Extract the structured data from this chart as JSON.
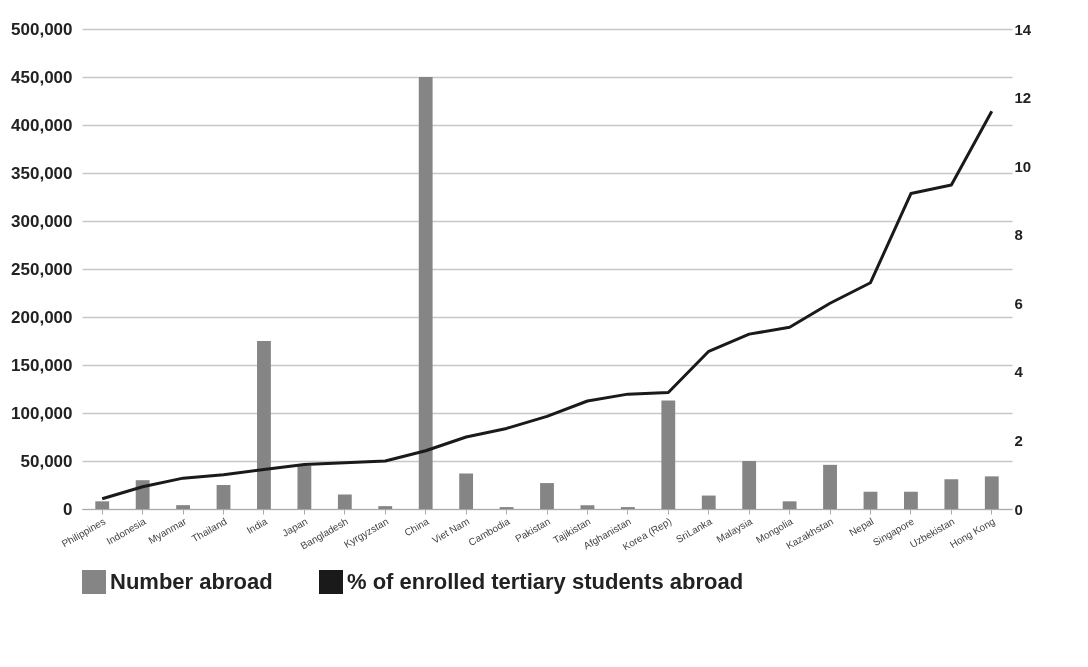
{
  "chart_data": {
    "type": "bar",
    "categories": [
      "Philippines",
      "Indonesia",
      "Myanmar",
      "Thailand",
      "India",
      "Japan",
      "Bangladesh",
      "Kyrgyzstan",
      "China",
      "Viet Nam",
      "Cambodia",
      "Pakistan",
      "Tajikistan",
      "Afghanistan",
      "Korea (Rep)",
      "SriLanka",
      "Malaysia",
      "Mongolia",
      "Kazakhstan",
      "Nepal",
      "Singapore",
      "Uzbekistan",
      "Hong Kong"
    ],
    "series": [
      {
        "name": "Number abroad",
        "color": "#858585",
        "values": [
          8000,
          30000,
          4000,
          25000,
          175000,
          45000,
          15000,
          3000,
          450000,
          37000,
          2000,
          27000,
          4000,
          2000,
          113000,
          14000,
          50000,
          8000,
          46000,
          18000,
          18000,
          31000,
          34000
        ]
      },
      {
        "name": "% of enrolled tertiary students abroad",
        "type": "line",
        "axis": "y2",
        "color": "#1a1a1a",
        "values": [
          0.3,
          0.65,
          0.9,
          1.0,
          1.15,
          1.3,
          1.35,
          1.4,
          1.7,
          2.1,
          2.35,
          2.7,
          3.15,
          3.35,
          3.4,
          4.6,
          5.1,
          5.3,
          6.0,
          6.6,
          9.2,
          9.45,
          11.6
        ]
      }
    ],
    "ylim": [
      0,
      500000
    ],
    "yticks": [
      0,
      {
        "value": 50000,
        "label": "50,000"
      },
      {
        "value": 100000,
        "label": "100,000"
      },
      {
        "value": 150000,
        "label": "150,000"
      },
      {
        "value": 200000,
        "label": "200,000"
      },
      {
        "value": 250000,
        "label": "250,000"
      },
      {
        "value": 300000,
        "label": "300,000"
      },
      {
        "value": 350000,
        "label": "350,000"
      },
      {
        "value": 400000,
        "label": "400,000"
      },
      {
        "value": 450000,
        "label": "450,000"
      },
      {
        "value": 500000,
        "label": "500,000"
      }
    ],
    "y2lim": [
      0,
      14
    ],
    "y2ticks": [
      0,
      2,
      4,
      6,
      8,
      10,
      12,
      14
    ],
    "grid": "y",
    "legend": "bottom",
    "line_style": "solid",
    "marker": "none"
  }
}
